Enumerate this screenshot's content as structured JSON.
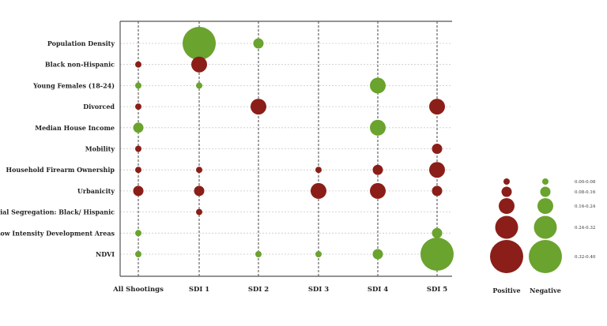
{
  "chart_data": {
    "type": "bubble-matrix",
    "title": "",
    "xlabel": "",
    "ylabel": "",
    "columns": [
      "All Shootings",
      "SDI 1",
      "SDI 2",
      "SDI 3",
      "SDI 4",
      "SDI 5"
    ],
    "rows": [
      "Population Density",
      "Black non-Hispanic",
      "Young Females (18-24)",
      "Divorced",
      "Median House Income",
      "Mobility",
      "Household Firearm Ownership",
      "Urbanicity",
      "Residential Segregation: Black/ Hispanic",
      "Low Intensity Development Areas",
      "NDVI"
    ],
    "size_bins": [
      "0.00-0.08",
      "0.08-0.16",
      "0.16-0.24",
      "0.24-0.32",
      "0.32-0.40"
    ],
    "sign_legend": {
      "positive_label": "Positive",
      "negative_label": "Negative"
    },
    "colors": {
      "positive": "#8b1e18",
      "negative": "#6aa32e",
      "axis": "#555555",
      "grid": "#c8c8c8"
    },
    "cells": [
      {
        "row": "Population Density",
        "column": "SDI 1",
        "sign": "negative",
        "bin": "0.32-0.40"
      },
      {
        "row": "Population Density",
        "column": "SDI 2",
        "sign": "negative",
        "bin": "0.08-0.16"
      },
      {
        "row": "Black non-Hispanic",
        "column": "All Shootings",
        "sign": "positive",
        "bin": "0.00-0.08"
      },
      {
        "row": "Black non-Hispanic",
        "column": "SDI 1",
        "sign": "positive",
        "bin": "0.16-0.24"
      },
      {
        "row": "Young Females (18-24)",
        "column": "All Shootings",
        "sign": "negative",
        "bin": "0.00-0.08"
      },
      {
        "row": "Young Females (18-24)",
        "column": "SDI 1",
        "sign": "negative",
        "bin": "0.00-0.08"
      },
      {
        "row": "Young Females (18-24)",
        "column": "SDI 4",
        "sign": "negative",
        "bin": "0.16-0.24"
      },
      {
        "row": "Divorced",
        "column": "All Shootings",
        "sign": "positive",
        "bin": "0.00-0.08"
      },
      {
        "row": "Divorced",
        "column": "SDI 2",
        "sign": "positive",
        "bin": "0.16-0.24"
      },
      {
        "row": "Divorced",
        "column": "SDI 5",
        "sign": "positive",
        "bin": "0.16-0.24"
      },
      {
        "row": "Median House Income",
        "column": "All Shootings",
        "sign": "negative",
        "bin": "0.08-0.16"
      },
      {
        "row": "Median House Income",
        "column": "SDI 4",
        "sign": "negative",
        "bin": "0.16-0.24"
      },
      {
        "row": "Mobility",
        "column": "All Shootings",
        "sign": "positive",
        "bin": "0.00-0.08"
      },
      {
        "row": "Mobility",
        "column": "SDI 5",
        "sign": "positive",
        "bin": "0.08-0.16"
      },
      {
        "row": "Household Firearm Ownership",
        "column": "All Shootings",
        "sign": "positive",
        "bin": "0.00-0.08"
      },
      {
        "row": "Household Firearm Ownership",
        "column": "SDI 1",
        "sign": "positive",
        "bin": "0.00-0.08"
      },
      {
        "row": "Household Firearm Ownership",
        "column": "SDI 3",
        "sign": "positive",
        "bin": "0.00-0.08"
      },
      {
        "row": "Household Firearm Ownership",
        "column": "SDI 4",
        "sign": "positive",
        "bin": "0.08-0.16"
      },
      {
        "row": "Household Firearm Ownership",
        "column": "SDI 5",
        "sign": "positive",
        "bin": "0.16-0.24"
      },
      {
        "row": "Urbanicity",
        "column": "All Shootings",
        "sign": "positive",
        "bin": "0.08-0.16"
      },
      {
        "row": "Urbanicity",
        "column": "SDI 1",
        "sign": "positive",
        "bin": "0.08-0.16"
      },
      {
        "row": "Urbanicity",
        "column": "SDI 3",
        "sign": "positive",
        "bin": "0.16-0.24"
      },
      {
        "row": "Urbanicity",
        "column": "SDI 4",
        "sign": "positive",
        "bin": "0.16-0.24"
      },
      {
        "row": "Urbanicity",
        "column": "SDI 5",
        "sign": "positive",
        "bin": "0.08-0.16"
      },
      {
        "row": "Residential Segregation: Black/ Hispanic",
        "column": "SDI 1",
        "sign": "positive",
        "bin": "0.00-0.08"
      },
      {
        "row": "Low Intensity Development Areas",
        "column": "All Shootings",
        "sign": "negative",
        "bin": "0.00-0.08"
      },
      {
        "row": "Low Intensity Development Areas",
        "column": "SDI 5",
        "sign": "negative",
        "bin": "0.08-0.16"
      },
      {
        "row": "NDVI",
        "column": "All Shootings",
        "sign": "negative",
        "bin": "0.00-0.08"
      },
      {
        "row": "NDVI",
        "column": "SDI 2",
        "sign": "negative",
        "bin": "0.00-0.08"
      },
      {
        "row": "NDVI",
        "column": "SDI 3",
        "sign": "negative",
        "bin": "0.00-0.08"
      },
      {
        "row": "NDVI",
        "column": "SDI 4",
        "sign": "negative",
        "bin": "0.08-0.16"
      },
      {
        "row": "NDVI",
        "column": "SDI 5",
        "sign": "negative",
        "bin": "0.32-0.40"
      }
    ]
  }
}
